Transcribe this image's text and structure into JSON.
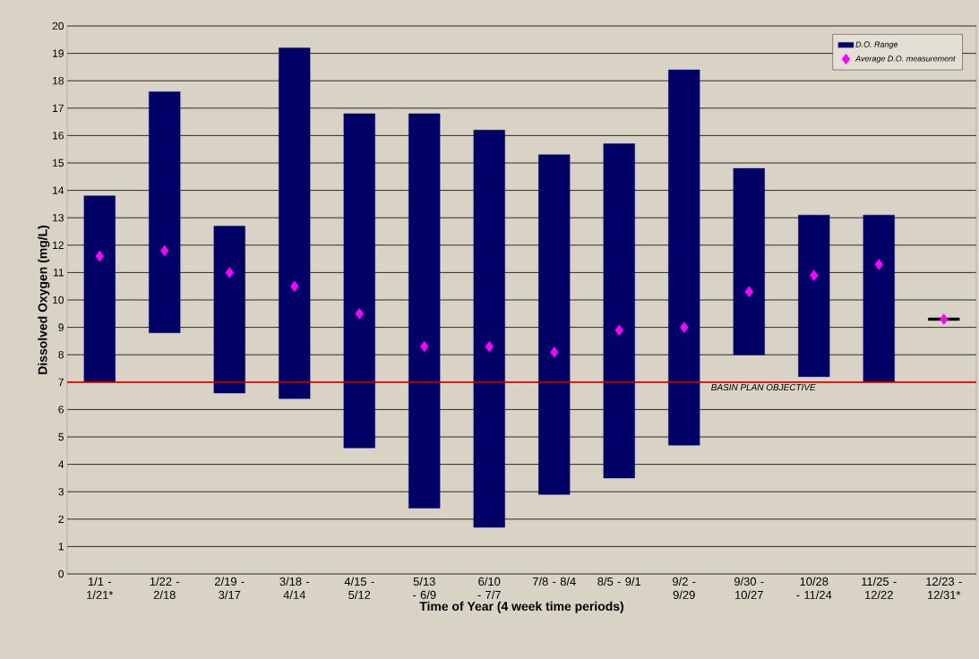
{
  "chart_data": {
    "type": "bar",
    "xlabel": "Time of Year (4 week time periods)",
    "ylabel": "Dissolved Oxygen (mg/L)",
    "categories": [
      "1/1 - 1/21*",
      "1/22 - 2/18",
      "2/19 - 3/17",
      "3/18 - 4/14",
      "4/15 - 5/12",
      "5/13 - 6/9",
      "6/10 - 7/7",
      "7/8 - 8/4",
      "8/5 - 9/1",
      "9/2 - 9/29",
      "9/30 - 10/27",
      "10/28 - 11/24",
      "11/25 - 12/22",
      "12/23 - 12/31*"
    ],
    "series": [
      {
        "name": "D.O. Range",
        "colors": [
          "#000066",
          "#000066",
          "#000066",
          "#000066",
          "#000066",
          "#000066",
          "#000066",
          "#000066",
          "#000066",
          "#000066",
          "#000066",
          "#000066",
          "#000066",
          "#000000"
        ],
        "base": [
          7.0,
          8.8,
          6.6,
          6.4,
          4.6,
          2.4,
          1.7,
          2.9,
          3.5,
          4.7,
          8.0,
          7.2,
          7.0,
          9.25
        ],
        "values": [
          6.8,
          8.8,
          6.1,
          12.8,
          12.2,
          14.4,
          14.5,
          12.4,
          12.2,
          13.7,
          6.8,
          5.9,
          6.1,
          0.1
        ]
      },
      {
        "name": "Average D.O. measurement",
        "type": "scatter",
        "color": "#ff00ff",
        "marker": "diamond",
        "values": [
          11.6,
          11.8,
          11.0,
          10.5,
          9.5,
          8.3,
          8.3,
          8.1,
          8.9,
          9.0,
          10.3,
          10.9,
          11.3,
          9.3
        ]
      }
    ],
    "ylim": [
      0,
      20
    ],
    "yticks": [
      0,
      1,
      2,
      3,
      4,
      5,
      6,
      7,
      8,
      9,
      10,
      11,
      12,
      13,
      14,
      15,
      16,
      17,
      18,
      19,
      20
    ],
    "grid": "y",
    "legend": "top right",
    "ref_lines": [
      {
        "axis": "y",
        "value": 7,
        "label": "BASIN PLAN OBJECTIVE",
        "color": "#c00000"
      }
    ]
  }
}
